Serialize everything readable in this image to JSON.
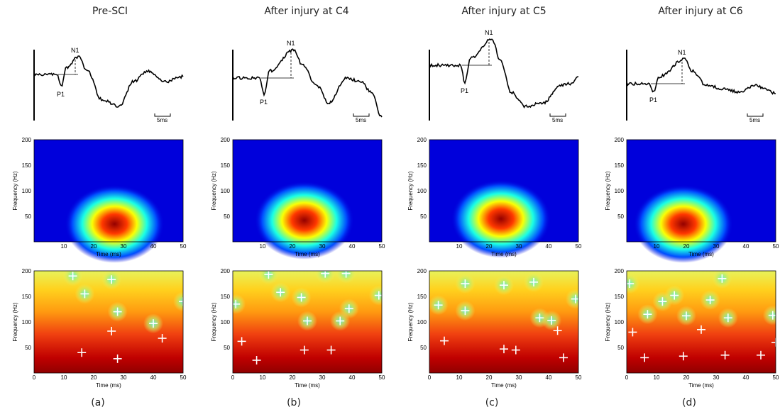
{
  "colors": {
    "trace": "#000000",
    "background": "#ffffff"
  },
  "scale_bar_label": "5ms",
  "spectrogram_axes": {
    "xlabel": "Time (ms)",
    "ylabel": "Frequency (Hz)",
    "xticks": [
      10,
      20,
      30,
      40,
      50
    ],
    "yticks": [
      50,
      100,
      150,
      200
    ],
    "xlim": [
      0,
      50
    ],
    "ylim": [
      0,
      200
    ]
  },
  "significance_axes": {
    "xlabel": "Time (ms)",
    "ylabel": "Frequency (Hz)",
    "xticks": [
      0,
      10,
      20,
      30,
      40,
      50
    ],
    "yticks": [
      50,
      100,
      150,
      200
    ],
    "xlim": [
      0,
      50
    ],
    "ylim": [
      0,
      200
    ]
  },
  "chart_data": [
    {
      "type": "line",
      "title": "Pre-SCI",
      "sublabel": "(a)",
      "peaks": {
        "p": "P1",
        "n": "N1"
      },
      "heatmap_peak": {
        "t": 27,
        "f": 35,
        "peak_color": "#c00000"
      },
      "markers": [
        {
          "t": 13,
          "f": 190
        },
        {
          "t": 26,
          "f": 183
        },
        {
          "t": 17,
          "f": 155
        },
        {
          "t": 28,
          "f": 120
        },
        {
          "t": 40,
          "f": 97
        },
        {
          "t": 26,
          "f": 82
        },
        {
          "t": 43,
          "f": 68
        },
        {
          "t": 50,
          "f": 140
        },
        {
          "t": 16,
          "f": 40
        },
        {
          "t": 28,
          "f": 28
        }
      ]
    },
    {
      "type": "line",
      "title": "After injury at C4",
      "sublabel": "(b)",
      "peaks": {
        "p": "P1",
        "n": "N1"
      },
      "heatmap_peak": {
        "t": 24,
        "f": 42,
        "peak_color": "#d00000"
      },
      "markers": [
        {
          "t": 12,
          "f": 193
        },
        {
          "t": 31,
          "f": 195
        },
        {
          "t": 38,
          "f": 195
        },
        {
          "t": 16,
          "f": 158
        },
        {
          "t": 23,
          "f": 148
        },
        {
          "t": 1,
          "f": 135
        },
        {
          "t": 39,
          "f": 126
        },
        {
          "t": 49,
          "f": 152
        },
        {
          "t": 25,
          "f": 102
        },
        {
          "t": 36,
          "f": 102
        },
        {
          "t": 3,
          "f": 62
        },
        {
          "t": 8,
          "f": 25
        },
        {
          "t": 24,
          "f": 45
        },
        {
          "t": 33,
          "f": 45
        }
      ]
    },
    {
      "type": "line",
      "title": "After injury at C5",
      "sublabel": "(c)",
      "peaks": {
        "p": "P1",
        "n": "N1"
      },
      "heatmap_peak": {
        "t": 24,
        "f": 45,
        "peak_color": "#d00000"
      },
      "markers": [
        {
          "t": 12,
          "f": 175
        },
        {
          "t": 25,
          "f": 172
        },
        {
          "t": 35,
          "f": 178
        },
        {
          "t": 3,
          "f": 133
        },
        {
          "t": 12,
          "f": 122
        },
        {
          "t": 49,
          "f": 145
        },
        {
          "t": 37,
          "f": 108
        },
        {
          "t": 41,
          "f": 103
        },
        {
          "t": 43,
          "f": 83
        },
        {
          "t": 5,
          "f": 63
        },
        {
          "t": 25,
          "f": 47
        },
        {
          "t": 29,
          "f": 45
        },
        {
          "t": 45,
          "f": 30
        }
      ]
    },
    {
      "type": "line",
      "title": "After injury at C6",
      "sublabel": "(d)",
      "peaks": {
        "p": "P1",
        "n": "N1"
      },
      "heatmap_peak": {
        "t": 19,
        "f": 35,
        "peak_color": "#c80000"
      },
      "markers": [
        {
          "t": 1,
          "f": 175
        },
        {
          "t": 32,
          "f": 185
        },
        {
          "t": 16,
          "f": 152
        },
        {
          "t": 12,
          "f": 140
        },
        {
          "t": 28,
          "f": 143
        },
        {
          "t": 7,
          "f": 115
        },
        {
          "t": 20,
          "f": 112
        },
        {
          "t": 34,
          "f": 108
        },
        {
          "t": 49,
          "f": 113
        },
        {
          "t": 25,
          "f": 85
        },
        {
          "t": 2,
          "f": 80
        },
        {
          "t": 6,
          "f": 30
        },
        {
          "t": 19,
          "f": 33
        },
        {
          "t": 33,
          "f": 35
        },
        {
          "t": 45,
          "f": 35
        },
        {
          "t": 50,
          "f": 60
        }
      ]
    }
  ]
}
